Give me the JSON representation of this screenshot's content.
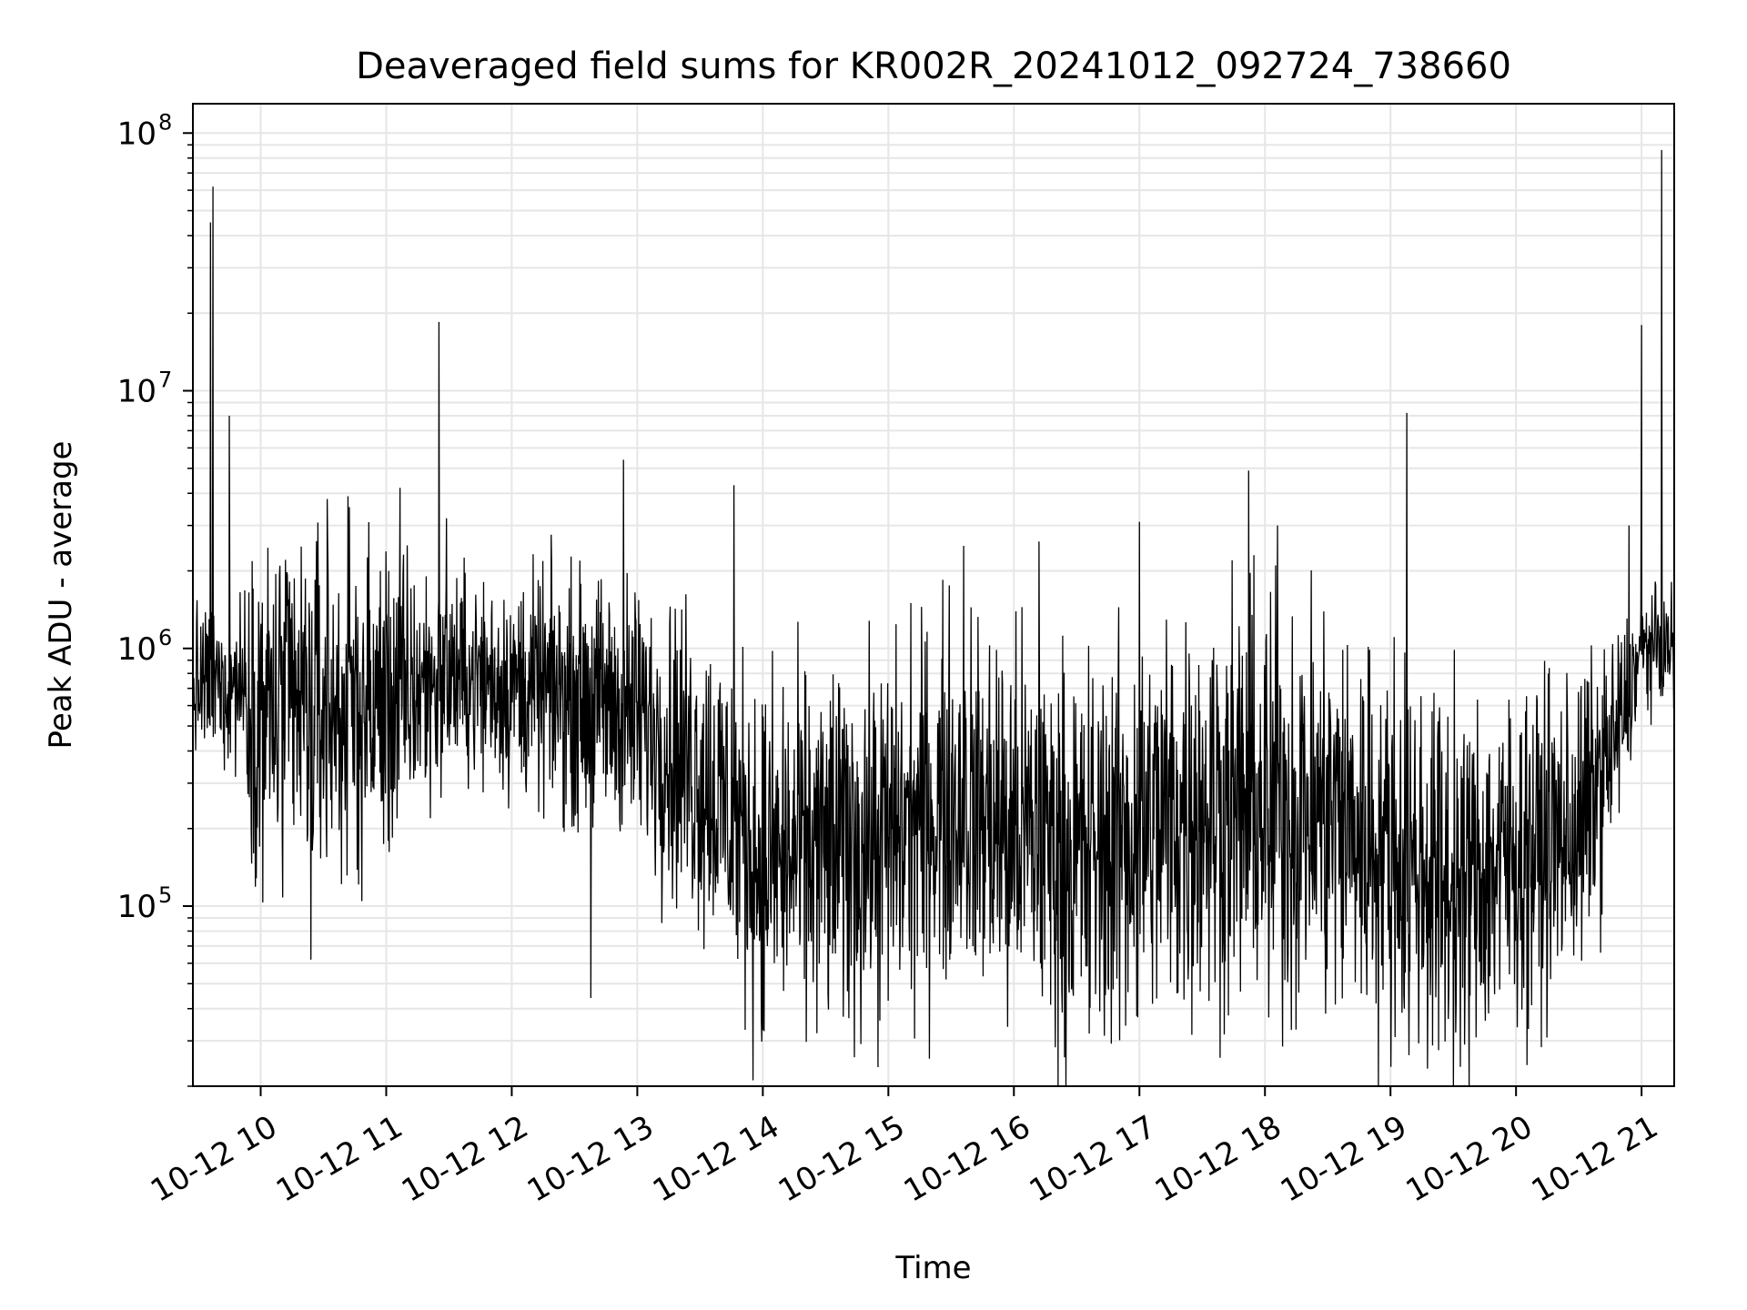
{
  "chart_data": {
    "type": "line",
    "title": "Deaveraged field sums for KR002R_20241012_092724_738660",
    "xlabel": "Time",
    "ylabel": "Peak ADU - average",
    "yscale": "log",
    "ylim": [
      20000,
      130000000
    ],
    "xlim_hours": [
      9.46,
      21.26
    ],
    "grid": true,
    "x_ticks": [
      {
        "hour": 10,
        "label": "10-12 10"
      },
      {
        "hour": 11,
        "label": "10-12 11"
      },
      {
        "hour": 12,
        "label": "10-12 12"
      },
      {
        "hour": 13,
        "label": "10-12 13"
      },
      {
        "hour": 14,
        "label": "10-12 14"
      },
      {
        "hour": 15,
        "label": "10-12 15"
      },
      {
        "hour": 16,
        "label": "10-12 16"
      },
      {
        "hour": 17,
        "label": "10-12 17"
      },
      {
        "hour": 18,
        "label": "10-12 18"
      },
      {
        "hour": 19,
        "label": "10-12 19"
      },
      {
        "hour": 20,
        "label": "10-12 20"
      },
      {
        "hour": 21,
        "label": "10-12 21"
      }
    ],
    "y_ticks": [
      {
        "value": 100000,
        "base": "10",
        "exp": "5"
      },
      {
        "value": 1000000,
        "base": "10",
        "exp": "6"
      },
      {
        "value": 10000000,
        "base": "10",
        "exp": "7"
      },
      {
        "value": 100000000,
        "base": "10",
        "exp": "8"
      }
    ],
    "series": [
      {
        "name": "deaveraged field sum",
        "color": "#000000",
        "envelope_profile": [
          {
            "hour": 9.46,
            "median": 700000,
            "spread": 0.35
          },
          {
            "hour": 9.85,
            "median": 750000,
            "spread": 0.4
          },
          {
            "hour": 10.0,
            "median": 550000,
            "spread": 0.85
          },
          {
            "hour": 11.0,
            "median": 600000,
            "spread": 0.75
          },
          {
            "hour": 11.5,
            "median": 800000,
            "spread": 0.45
          },
          {
            "hour": 12.5,
            "median": 650000,
            "spread": 0.55
          },
          {
            "hour": 13.0,
            "median": 550000,
            "spread": 0.6
          },
          {
            "hour": 13.5,
            "median": 330000,
            "spread": 0.75
          },
          {
            "hour": 14.0,
            "median": 150000,
            "spread": 0.8
          },
          {
            "hour": 15.0,
            "median": 180000,
            "spread": 0.85
          },
          {
            "hour": 15.5,
            "median": 260000,
            "spread": 0.85
          },
          {
            "hour": 16.5,
            "median": 150000,
            "spread": 0.9
          },
          {
            "hour": 17.5,
            "median": 250000,
            "spread": 0.95
          },
          {
            "hour": 18.5,
            "median": 230000,
            "spread": 0.95
          },
          {
            "hour": 19.5,
            "median": 120000,
            "spread": 0.85
          },
          {
            "hour": 20.5,
            "median": 200000,
            "spread": 0.7
          },
          {
            "hour": 20.8,
            "median": 450000,
            "spread": 0.5
          },
          {
            "hour": 21.0,
            "median": 1000000,
            "spread": 0.25
          },
          {
            "hour": 21.26,
            "median": 1000000,
            "spread": 0.25
          }
        ],
        "spikes": [
          {
            "hour": 9.62,
            "value": 62000000
          },
          {
            "hour": 9.6,
            "value": 45000000
          },
          {
            "hour": 9.75,
            "value": 8000000
          },
          {
            "hour": 10.53,
            "value": 3800000
          },
          {
            "hour": 11.11,
            "value": 4200000
          },
          {
            "hour": 11.42,
            "value": 18500000
          },
          {
            "hour": 11.48,
            "value": 3200000
          },
          {
            "hour": 12.89,
            "value": 5400000
          },
          {
            "hour": 13.77,
            "value": 4300000
          },
          {
            "hour": 15.6,
            "value": 2500000
          },
          {
            "hour": 16.2,
            "value": 2600000
          },
          {
            "hour": 17.0,
            "value": 3100000
          },
          {
            "hour": 17.87,
            "value": 4900000
          },
          {
            "hour": 18.1,
            "value": 3000000
          },
          {
            "hour": 19.13,
            "value": 8200000
          },
          {
            "hour": 20.9,
            "value": 3000000
          },
          {
            "hour": 21.0,
            "value": 18000000
          },
          {
            "hour": 21.16,
            "value": 86000000
          }
        ],
        "dips": [
          {
            "hour": 10.4,
            "value": 62000
          },
          {
            "hour": 12.63,
            "value": 44000
          },
          {
            "hour": 14.0,
            "value": 33000
          },
          {
            "hour": 15.95,
            "value": 34000
          },
          {
            "hour": 16.6,
            "value": 32000
          },
          {
            "hour": 18.03,
            "value": 37000
          },
          {
            "hour": 19.59,
            "value": 29000
          }
        ]
      }
    ]
  }
}
